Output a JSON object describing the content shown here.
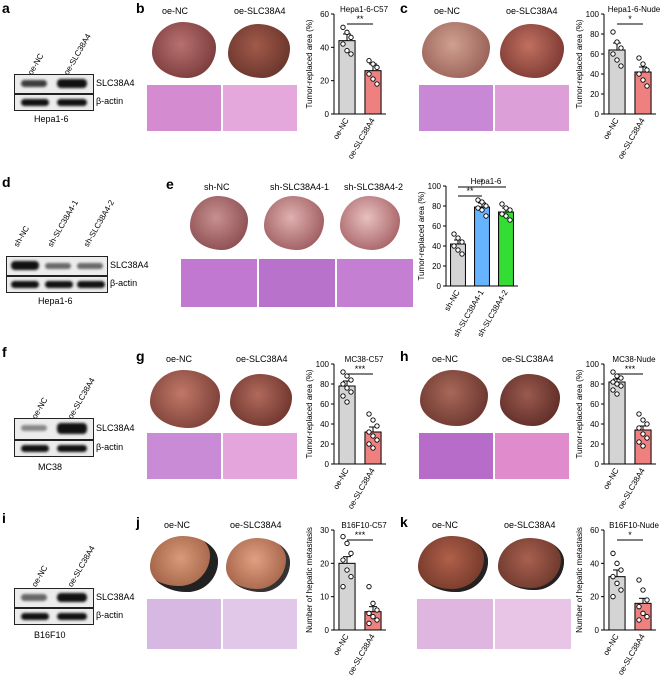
{
  "panels": {
    "a": {
      "letter": "a",
      "lanes": [
        "oe-NC",
        "oe-SLC38A4"
      ],
      "bands": [
        "SLC38A4",
        "β-actin"
      ],
      "cell": "Hepa1-6"
    },
    "b": {
      "letter": "b",
      "groups": [
        "oe-NC",
        "oe-SLC38A4"
      ]
    },
    "c": {
      "letter": "c",
      "groups": [
        "oe-NC",
        "oe-SLC38A4"
      ]
    },
    "d": {
      "letter": "d",
      "lanes": [
        "sh-NC",
        "sh-SLC38A4-1",
        "sh-SLC38A4-2"
      ],
      "bands": [
        "SLC38A4",
        "β-actin"
      ],
      "cell": "Hepa1-6"
    },
    "e": {
      "letter": "e",
      "groups": [
        "sh-NC",
        "sh-SLC38A4-1",
        "sh-SLC38A4-2"
      ]
    },
    "f": {
      "letter": "f",
      "lanes": [
        "oe-NC",
        "oe-SLC38A4"
      ],
      "bands": [
        "SLC38A4",
        "β-actin"
      ],
      "cell": "MC38"
    },
    "g": {
      "letter": "g",
      "groups": [
        "oe-NC",
        "oe-SLC38A4"
      ]
    },
    "h": {
      "letter": "h",
      "groups": [
        "oe-NC",
        "oe-SLC38A4"
      ]
    },
    "i": {
      "letter": "i",
      "lanes": [
        "oe-NC",
        "oe-SLC38A4"
      ],
      "bands": [
        "SLC38A4",
        "β-actin"
      ],
      "cell": "B16F10"
    },
    "j": {
      "letter": "j",
      "groups": [
        "oe-NC",
        "oe-SLC38A4"
      ]
    },
    "k": {
      "letter": "k",
      "groups": [
        "oe-NC",
        "oe-SLC38A4"
      ]
    }
  },
  "colors": {
    "nc": "#d4d4d4",
    "oe": "#ee8080",
    "sh1": "#66b3ff",
    "sh2": "#33dd33",
    "he": "#d98fd0"
  },
  "chart_data": [
    {
      "id": "b",
      "type": "bar",
      "title": "Hepa1-6-C57",
      "ylabel": "Tumor-replaced area (%)",
      "ylim": [
        0,
        60
      ],
      "yticks": [
        0,
        20,
        40,
        60
      ],
      "categories": [
        "oe-NC",
        "oe-SLC38A4"
      ],
      "values": [
        44,
        26
      ],
      "errors": [
        4,
        4
      ],
      "points": [
        [
          52,
          49,
          46,
          42,
          38,
          36
        ],
        [
          32,
          30,
          28,
          24,
          21,
          18
        ]
      ],
      "sig": [
        {
          "label": "**",
          "from": 0,
          "to": 1
        }
      ],
      "colors": [
        "#d4d4d4",
        "#ee8080"
      ]
    },
    {
      "id": "c",
      "type": "bar",
      "title": "Hepa1-6-Nude",
      "ylabel": "Tumor-replaced area (%)",
      "ylim": [
        0,
        100
      ],
      "yticks": [
        0,
        20,
        40,
        60,
        80,
        100
      ],
      "categories": [
        "oe-NC",
        "oe-SLC38A4"
      ],
      "values": [
        64,
        42
      ],
      "errors": [
        7,
        5
      ],
      "points": [
        [
          82,
          72,
          66,
          60,
          54,
          48
        ],
        [
          56,
          50,
          44,
          40,
          34,
          28
        ]
      ],
      "sig": [
        {
          "label": "*",
          "from": 0,
          "to": 1
        }
      ],
      "colors": [
        "#d4d4d4",
        "#ee8080"
      ]
    },
    {
      "id": "e",
      "type": "bar",
      "title": "Hepa1-6",
      "ylabel": "Tumor-replaced area (%)",
      "ylim": [
        0,
        100
      ],
      "yticks": [
        0,
        20,
        40,
        60,
        80,
        100
      ],
      "categories": [
        "sh-NC",
        "sh-SLC38A4-1",
        "sh-SLC38A4-2"
      ],
      "values": [
        42,
        79,
        74
      ],
      "errors": [
        4,
        4,
        4
      ],
      "points": [
        [
          52,
          48,
          44,
          40,
          36,
          32
        ],
        [
          86,
          84,
          80,
          78,
          76,
          70
        ],
        [
          82,
          78,
          76,
          72,
          70,
          66
        ]
      ],
      "sig": [
        {
          "label": "**",
          "from": 0,
          "to": 1
        },
        {
          "label": "*",
          "from": 0,
          "to": 2
        }
      ],
      "colors": [
        "#d4d4d4",
        "#66b3ff",
        "#33dd33"
      ]
    },
    {
      "id": "g",
      "type": "bar",
      "title": "MC38-C57",
      "ylabel": "Tumor-replaced area (%)",
      "ylim": [
        0,
        100
      ],
      "yticks": [
        0,
        20,
        40,
        60,
        80,
        100
      ],
      "categories": [
        "oe-NC",
        "oe-SLC38A4"
      ],
      "values": [
        78,
        32
      ],
      "errors": [
        5,
        5
      ],
      "points": [
        [
          92,
          88,
          84,
          80,
          76,
          72,
          68,
          62
        ],
        [
          50,
          44,
          38,
          32,
          28,
          24,
          20,
          16
        ]
      ],
      "sig": [
        {
          "label": "***",
          "from": 0,
          "to": 1
        }
      ],
      "colors": [
        "#d4d4d4",
        "#ee8080"
      ]
    },
    {
      "id": "h",
      "type": "bar",
      "title": "MC38-Nude",
      "ylabel": "Tumor-replaced area (%)",
      "ylim": [
        0,
        100
      ],
      "yticks": [
        0,
        20,
        40,
        60,
        80,
        100
      ],
      "categories": [
        "oe-NC",
        "oe-SLC38A4"
      ],
      "values": [
        82,
        34
      ],
      "errors": [
        3,
        4
      ],
      "points": [
        [
          92,
          88,
          86,
          82,
          80,
          78,
          74,
          70
        ],
        [
          50,
          44,
          40,
          36,
          30,
          26,
          22,
          18
        ]
      ],
      "sig": [
        {
          "label": "***",
          "from": 0,
          "to": 1
        }
      ],
      "colors": [
        "#d4d4d4",
        "#ee8080"
      ]
    },
    {
      "id": "j",
      "type": "bar",
      "title": "B16F10-C57",
      "ylabel": "Number of hepatic metastasis",
      "ylim": [
        0,
        30
      ],
      "yticks": [
        0,
        10,
        20,
        30
      ],
      "categories": [
        "oe-NC",
        "oe-SLC38A4"
      ],
      "values": [
        20,
        5.5
      ],
      "errors": [
        2,
        1.5
      ],
      "points": [
        [
          28,
          26,
          23,
          21,
          18,
          16,
          13
        ],
        [
          13,
          8,
          6,
          5,
          4,
          3,
          2
        ]
      ],
      "sig": [
        {
          "label": "***",
          "from": 0,
          "to": 1
        }
      ],
      "colors": [
        "#d4d4d4",
        "#ee8080"
      ]
    },
    {
      "id": "k",
      "type": "bar",
      "title": "B16F10-Nude",
      "ylabel": "Number of hepatic metastasis",
      "ylim": [
        0,
        60
      ],
      "yticks": [
        0,
        20,
        40,
        60
      ],
      "categories": [
        "oe-NC",
        "oe-SLC38A4"
      ],
      "values": [
        32,
        16
      ],
      "errors": [
        4,
        3
      ],
      "points": [
        [
          46,
          40,
          36,
          32,
          28,
          24,
          20
        ],
        [
          30,
          24,
          18,
          14,
          10,
          8,
          6
        ]
      ],
      "sig": [
        {
          "label": "*",
          "from": 0,
          "to": 1
        }
      ],
      "colors": [
        "#d4d4d4",
        "#ee8080"
      ]
    }
  ]
}
